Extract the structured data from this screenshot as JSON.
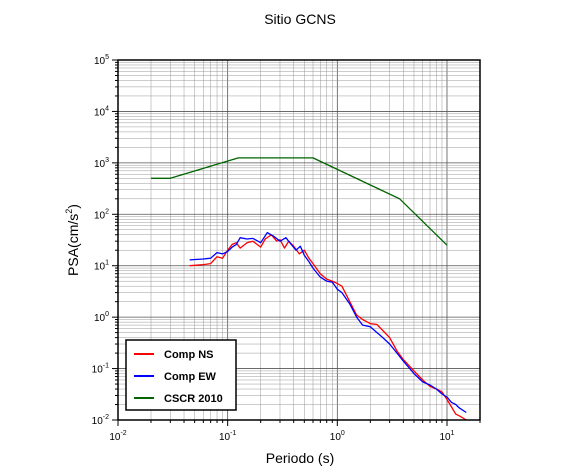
{
  "chart_data": {
    "type": "line",
    "title": "Sitio GCNS",
    "xlabel": "Periodo (s)",
    "ylabel": "PSA(cm/s²)",
    "x_scale": "log",
    "y_scale": "log",
    "xlim": [
      0.01,
      20
    ],
    "ylim": [
      0.01,
      100000
    ],
    "x_ticks": [
      {
        "value": 0.01,
        "base": "10",
        "exp": "-2"
      },
      {
        "value": 0.1,
        "base": "10",
        "exp": "-1"
      },
      {
        "value": 1,
        "base": "10",
        "exp": "0"
      },
      {
        "value": 10,
        "base": "10",
        "exp": "1"
      }
    ],
    "y_ticks": [
      {
        "value": 0.01,
        "base": "10",
        "exp": "-2"
      },
      {
        "value": 0.1,
        "base": "10",
        "exp": "-1"
      },
      {
        "value": 1,
        "base": "10",
        "exp": "0"
      },
      {
        "value": 10,
        "base": "10",
        "exp": "1"
      },
      {
        "value": 100,
        "base": "10",
        "exp": "2"
      },
      {
        "value": 1000,
        "base": "10",
        "exp": "3"
      },
      {
        "value": 10000,
        "base": "10",
        "exp": "4"
      },
      {
        "value": 100000,
        "base": "10",
        "exp": "5"
      }
    ],
    "grid": true,
    "legend_position": "bottom-left",
    "series": [
      {
        "name": "Comp NS",
        "color": "#ff0000",
        "points": [
          [
            0.045,
            10
          ],
          [
            0.06,
            10.5
          ],
          [
            0.07,
            11
          ],
          [
            0.08,
            15
          ],
          [
            0.09,
            14
          ],
          [
            0.1,
            20
          ],
          [
            0.11,
            26
          ],
          [
            0.12,
            28
          ],
          [
            0.13,
            22
          ],
          [
            0.15,
            28
          ],
          [
            0.17,
            30
          ],
          [
            0.2,
            23
          ],
          [
            0.22,
            33
          ],
          [
            0.25,
            40
          ],
          [
            0.28,
            30
          ],
          [
            0.3,
            32
          ],
          [
            0.33,
            22
          ],
          [
            0.36,
            30
          ],
          [
            0.4,
            24
          ],
          [
            0.45,
            17
          ],
          [
            0.5,
            20
          ],
          [
            0.55,
            14
          ],
          [
            0.6,
            11
          ],
          [
            0.7,
            7
          ],
          [
            0.8,
            5.5
          ],
          [
            0.9,
            5
          ],
          [
            1.0,
            4.5
          ],
          [
            1.1,
            4
          ],
          [
            1.3,
            2
          ],
          [
            1.5,
            1.1
          ],
          [
            1.7,
            0.9
          ],
          [
            2.0,
            0.75
          ],
          [
            2.3,
            0.72
          ],
          [
            2.6,
            0.55
          ],
          [
            3.0,
            0.4
          ],
          [
            3.5,
            0.22
          ],
          [
            4.0,
            0.15
          ],
          [
            5.0,
            0.09
          ],
          [
            6.0,
            0.06
          ],
          [
            7.0,
            0.045
          ],
          [
            8.0,
            0.04
          ],
          [
            9.0,
            0.035
          ],
          [
            10,
            0.025
          ],
          [
            11,
            0.018
          ],
          [
            12,
            0.013
          ],
          [
            13,
            0.012
          ],
          [
            15,
            0.01
          ]
        ]
      },
      {
        "name": "Comp EW",
        "color": "#0000ff",
        "points": [
          [
            0.045,
            13
          ],
          [
            0.06,
            13.5
          ],
          [
            0.07,
            14
          ],
          [
            0.08,
            18
          ],
          [
            0.09,
            17
          ],
          [
            0.1,
            19
          ],
          [
            0.11,
            23
          ],
          [
            0.12,
            26
          ],
          [
            0.13,
            35
          ],
          [
            0.15,
            33
          ],
          [
            0.17,
            34
          ],
          [
            0.2,
            28
          ],
          [
            0.23,
            44
          ],
          [
            0.26,
            38
          ],
          [
            0.3,
            30
          ],
          [
            0.34,
            35
          ],
          [
            0.38,
            26
          ],
          [
            0.42,
            20
          ],
          [
            0.46,
            24
          ],
          [
            0.5,
            16
          ],
          [
            0.55,
            12
          ],
          [
            0.6,
            9
          ],
          [
            0.7,
            6
          ],
          [
            0.8,
            5
          ],
          [
            0.9,
            4.8
          ],
          [
            1.0,
            3.5
          ],
          [
            1.1,
            3
          ],
          [
            1.3,
            1.8
          ],
          [
            1.5,
            1.0
          ],
          [
            1.7,
            0.7
          ],
          [
            2.0,
            0.65
          ],
          [
            2.3,
            0.5
          ],
          [
            2.6,
            0.4
          ],
          [
            3.0,
            0.3
          ],
          [
            3.5,
            0.2
          ],
          [
            4.0,
            0.14
          ],
          [
            5.0,
            0.08
          ],
          [
            6.0,
            0.055
          ],
          [
            7.0,
            0.048
          ],
          [
            8.0,
            0.04
          ],
          [
            9.0,
            0.032
          ],
          [
            10,
            0.028
          ],
          [
            11,
            0.022
          ],
          [
            12,
            0.02
          ],
          [
            13,
            0.017
          ],
          [
            15,
            0.014
          ]
        ]
      },
      {
        "name": "CSCR 2010",
        "color": "#006400",
        "points": [
          [
            0.02,
            500
          ],
          [
            0.03,
            500
          ],
          [
            0.125,
            1250
          ],
          [
            0.6,
            1250
          ],
          [
            3.7,
            200
          ],
          [
            10,
            25
          ]
        ]
      }
    ]
  }
}
